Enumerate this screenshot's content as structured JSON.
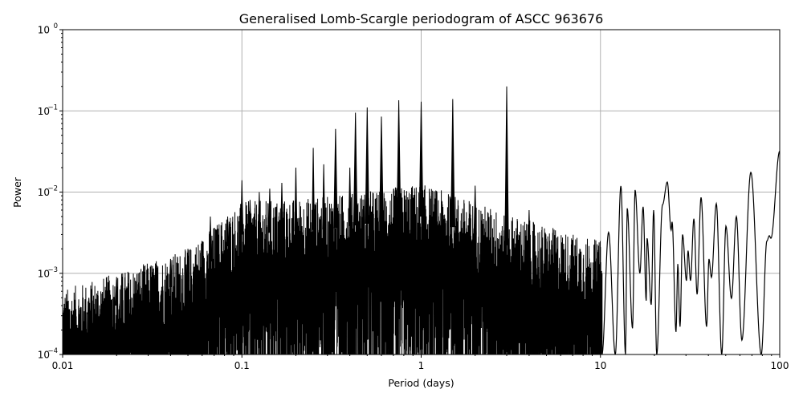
{
  "chart_data": {
    "type": "line",
    "title": "Generalised Lomb-Scargle periodogram of ASCC 963676",
    "xlabel": "Period (days)",
    "ylabel": "Power",
    "xscale": "log",
    "yscale": "log",
    "xlim": [
      0.01,
      100
    ],
    "ylim": [
      0.0001,
      1
    ],
    "grid": true,
    "line_color": "#000000",
    "grid_color": "#b0b0b0",
    "x_ticks": [
      {
        "value": 0.01,
        "label": "0.01"
      },
      {
        "value": 0.1,
        "label": "0.1"
      },
      {
        "value": 1,
        "label": "1"
      },
      {
        "value": 10,
        "label": "10"
      },
      {
        "value": 100,
        "label": "100"
      }
    ],
    "y_ticks": [
      {
        "value": 0.0001,
        "base": "10",
        "exp": "−4"
      },
      {
        "value": 0.001,
        "base": "10",
        "exp": "−3"
      },
      {
        "value": 0.01,
        "base": "10",
        "exp": "−2"
      },
      {
        "value": 0.1,
        "base": "10",
        "exp": "−1"
      },
      {
        "value": 1,
        "base": "10",
        "exp": "0"
      }
    ],
    "peaks": [
      [
        0.014,
        0.0005
      ],
      [
        0.02,
        0.0009
      ],
      [
        0.0286,
        0.001
      ],
      [
        0.033,
        0.0012
      ],
      [
        0.04,
        0.0015
      ],
      [
        0.05,
        0.002
      ],
      [
        0.0667,
        0.005
      ],
      [
        0.0833,
        0.005
      ],
      [
        0.1,
        0.014
      ],
      [
        0.111,
        0.008
      ],
      [
        0.125,
        0.01
      ],
      [
        0.143,
        0.011
      ],
      [
        0.167,
        0.013
      ],
      [
        0.2,
        0.02
      ],
      [
        0.25,
        0.035
      ],
      [
        0.286,
        0.022
      ],
      [
        0.333,
        0.06
      ],
      [
        0.4,
        0.02
      ],
      [
        0.43,
        0.095
      ],
      [
        0.5,
        0.11
      ],
      [
        0.6,
        0.085
      ],
      [
        0.75,
        0.135
      ],
      [
        1.0,
        0.13
      ],
      [
        1.5,
        0.14
      ],
      [
        2.0,
        0.012
      ],
      [
        3.0,
        0.2
      ],
      [
        4.0,
        0.006
      ]
    ],
    "noise_envelope": [
      [
        0.01,
        0.00025
      ],
      [
        0.02,
        0.0004
      ],
      [
        0.05,
        0.0008
      ],
      [
        0.08,
        0.002
      ],
      [
        0.1,
        0.003
      ],
      [
        0.3,
        0.0035
      ],
      [
        1.0,
        0.005
      ],
      [
        2.0,
        0.003
      ],
      [
        5.0,
        0.0015
      ],
      [
        10.0,
        0.001
      ]
    ],
    "long_period_curve": [
      [
        10.2,
        0.0001
      ],
      [
        11.1,
        0.0032
      ],
      [
        12.1,
        0.0001
      ],
      [
        13.0,
        0.0119
      ],
      [
        13.8,
        0.0001
      ],
      [
        14.1,
        0.0063
      ],
      [
        15.1,
        0.00021
      ],
      [
        15.6,
        0.0106
      ],
      [
        16.6,
        0.001
      ],
      [
        17.3,
        0.0066
      ],
      [
        18.0,
        0.00046
      ],
      [
        18.2,
        0.0027
      ],
      [
        19.2,
        0.00041
      ],
      [
        19.8,
        0.006
      ],
      [
        20.6,
        0.0001
      ],
      [
        22.2,
        0.007
      ],
      [
        23.6,
        0.0133
      ],
      [
        24.8,
        0.0034
      ],
      [
        25.1,
        0.0043
      ],
      [
        26.4,
        0.00019
      ],
      [
        27.0,
        0.0013
      ],
      [
        27.8,
        0.00022
      ],
      [
        28.7,
        0.003
      ],
      [
        30.2,
        0.00081
      ],
      [
        30.8,
        0.0019
      ],
      [
        31.8,
        0.00081
      ],
      [
        33.2,
        0.0047
      ],
      [
        34.6,
        0.00055
      ],
      [
        36.4,
        0.0086
      ],
      [
        39.1,
        0.00022
      ],
      [
        40.3,
        0.0015
      ],
      [
        41.6,
        0.00089
      ],
      [
        44.3,
        0.0072
      ],
      [
        47.5,
        0.0001
      ],
      [
        50.1,
        0.0038
      ],
      [
        53.8,
        0.00049
      ],
      [
        57.3,
        0.005
      ],
      [
        61.5,
        0.00015
      ],
      [
        69.0,
        0.0175
      ],
      [
        78.9,
        0.0001
      ],
      [
        84.8,
        0.0025
      ],
      [
        87.5,
        0.0029
      ],
      [
        89.3,
        0.0027
      ],
      [
        100,
        0.032
      ]
    ]
  }
}
